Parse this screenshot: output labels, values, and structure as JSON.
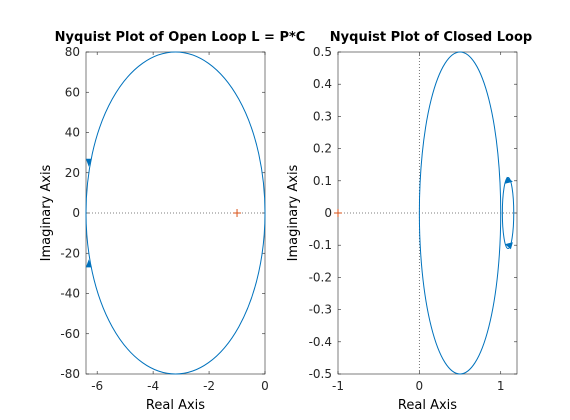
{
  "colors": {
    "curve": "#0072BD",
    "critical_point": "#D95319",
    "axes": "#262626"
  },
  "chart_data": [
    {
      "type": "line",
      "title": "Nyquist Plot of Open Loop L = P*C",
      "xlabel": "Real Axis",
      "ylabel": "Imaginary Axis",
      "xlim": [
        -6.4,
        0
      ],
      "ylim": [
        -80,
        80
      ],
      "xticks": [
        -6,
        -4,
        -2,
        0
      ],
      "yticks": [
        -80,
        -60,
        -40,
        -20,
        0,
        20,
        40,
        60,
        80
      ],
      "xtick_labels": [
        "-6",
        "-4",
        "-2",
        "0"
      ],
      "ytick_labels": [
        "-80",
        "-60",
        "-40",
        "-20",
        "0",
        "20",
        "40",
        "60",
        "80"
      ],
      "grid": false,
      "curve": {
        "shape": "ellipse",
        "center": [
          -3.2,
          0
        ],
        "semi_axes": [
          3.2,
          80
        ]
      },
      "direction_arrows": [
        {
          "x": -6.3,
          "y": 25,
          "dir": "down"
        },
        {
          "x": -6.3,
          "y": -25,
          "dir": "up"
        }
      ],
      "critical_point": {
        "x": -1,
        "y": 0,
        "marker": "+"
      }
    },
    {
      "type": "line",
      "title": "Nyquist Plot of Closed Loop",
      "xlabel": "Real Axis",
      "ylabel": "Imaginary Axis",
      "xlim": [
        -1,
        1.2
      ],
      "ylim": [
        -0.5,
        0.5
      ],
      "xticks": [
        -1,
        0,
        1
      ],
      "yticks": [
        -0.5,
        -0.4,
        -0.3,
        -0.2,
        -0.1,
        0,
        0.1,
        0.2,
        0.3,
        0.4,
        0.5
      ],
      "xtick_labels": [
        "-1",
        "0",
        "1"
      ],
      "ytick_labels": [
        "-0.5",
        "-0.4",
        "-0.3",
        "-0.2",
        "-0.1",
        "0",
        "0.1",
        "0.2",
        "0.3",
        "0.4",
        "0.5"
      ],
      "grid": false,
      "curve": {
        "shape": "ellipse",
        "center": [
          0.5,
          0
        ],
        "semi_axes": [
          0.5,
          0.5
        ]
      },
      "loop": {
        "shape": "ellipse",
        "center": [
          1.09,
          0
        ],
        "semi_axes": [
          0.07,
          0.11
        ]
      },
      "direction_arrows": [
        {
          "x": 1.1,
          "y": 0.1,
          "dir": "right"
        },
        {
          "x": 1.1,
          "y": -0.1,
          "dir": "left"
        }
      ],
      "critical_point": {
        "x": -1,
        "y": 0,
        "marker": "+"
      }
    }
  ]
}
